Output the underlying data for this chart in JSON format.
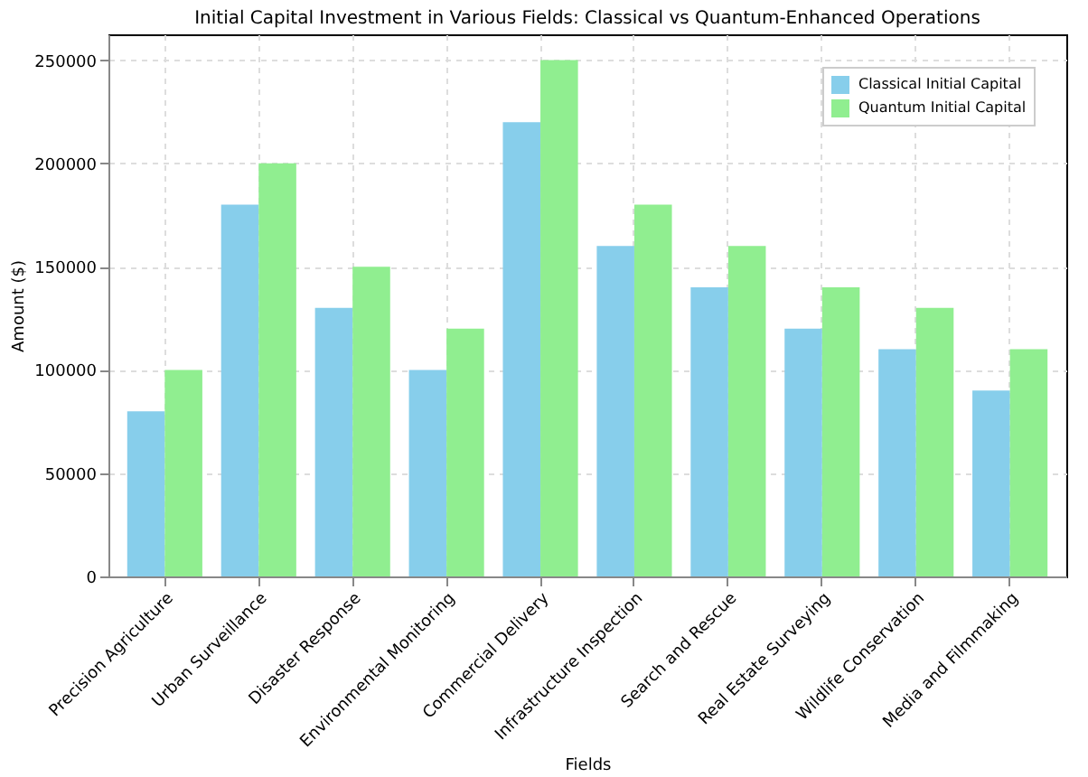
{
  "chart_data": {
    "type": "bar",
    "title": "Initial Capital Investment in Various Fields: Classical vs Quantum-Enhanced Operations",
    "xlabel": "Fields",
    "ylabel": "Amount ($)",
    "categories": [
      "Precision Agriculture",
      "Urban Surveillance",
      "Disaster Response",
      "Environmental Monitoring",
      "Commercial Delivery",
      "Infrastructure Inspection",
      "Search and Rescue",
      "Real Estate Surveying",
      "Wildlife Conservation",
      "Media and Filmmaking"
    ],
    "series": [
      {
        "name": "Classical Initial Capital",
        "color": "#87ceeb",
        "values": [
          80000,
          180000,
          130000,
          100000,
          220000,
          160000,
          140000,
          120000,
          110000,
          90000
        ]
      },
      {
        "name": "Quantum Initial Capital",
        "color": "#90ee90",
        "values": [
          100000,
          200000,
          150000,
          120000,
          250000,
          180000,
          160000,
          140000,
          130000,
          110000
        ]
      }
    ],
    "ylim": [
      0,
      262500
    ],
    "yticks": [
      0,
      50000,
      100000,
      150000,
      200000,
      250000
    ],
    "grid": true,
    "legend": "top right"
  }
}
